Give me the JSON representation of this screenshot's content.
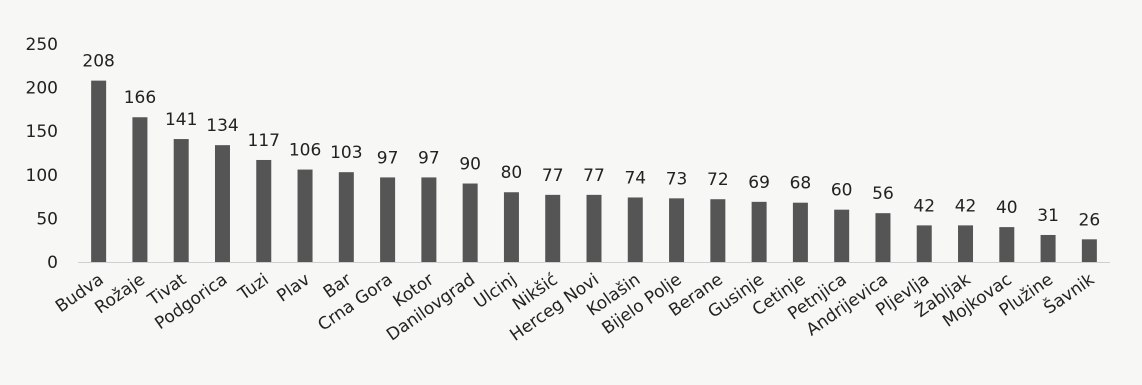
{
  "chart_data": {
    "type": "bar",
    "categories": [
      "Budva",
      "Rožaje",
      "Tivat",
      "Podgorica",
      "Tuzi",
      "Plav",
      "Bar",
      "Crna Gora",
      "Kotor",
      "Danilovgrad",
      "Ulcinj",
      "Nikšić",
      "Herceg Novi",
      "Kolašin",
      "Bijelo Polje",
      "Berane",
      "Gusinje",
      "Cetinje",
      "Petnjica",
      "Andrijevica",
      "Pljevlja",
      "Žabljak",
      "Mojkovac",
      "Plužine",
      "Šavnik"
    ],
    "values": [
      208,
      166,
      141,
      134,
      117,
      106,
      103,
      97,
      97,
      90,
      80,
      77,
      77,
      74,
      73,
      72,
      69,
      68,
      60,
      56,
      42,
      42,
      40,
      31,
      26
    ],
    "yticks": [
      0,
      50,
      100,
      150,
      200,
      250
    ],
    "ylim": [
      0,
      250
    ],
    "title": "",
    "xlabel": "",
    "ylabel": "",
    "grid": false,
    "bar_color": "#555555"
  }
}
